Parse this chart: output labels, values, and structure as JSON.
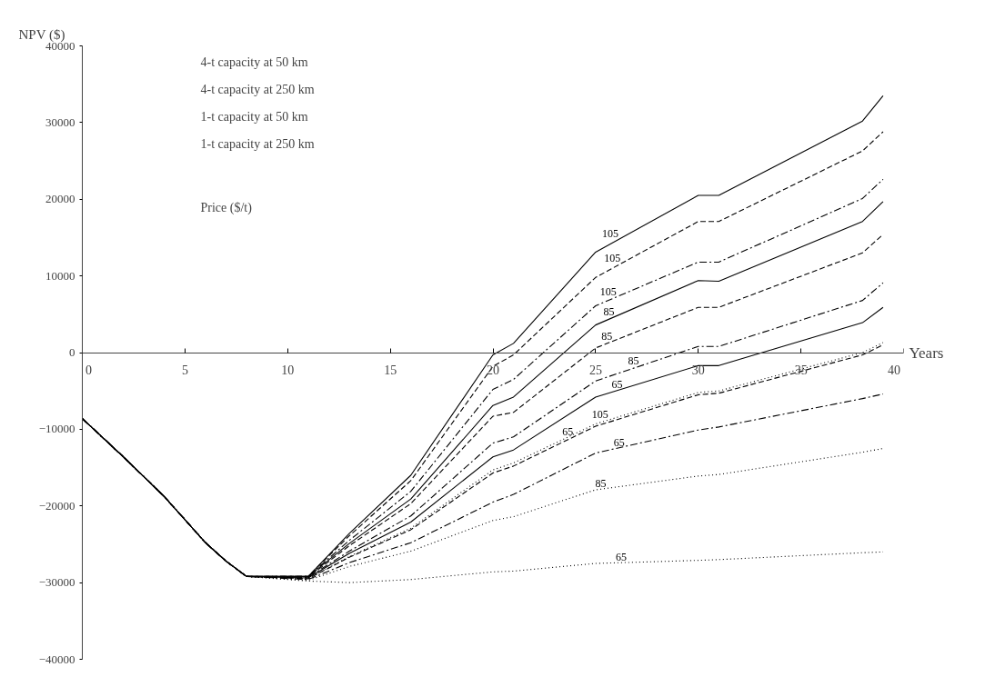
{
  "chart_data": {
    "type": "line",
    "xlabel": "Years",
    "ylabel": "NPV ($)",
    "xlim": [
      0,
      40
    ],
    "ylim": [
      -40000,
      40000
    ],
    "xticks": [
      0,
      5,
      10,
      15,
      20,
      25,
      30,
      35,
      40
    ],
    "yticks": [
      -40000,
      -30000,
      -20000,
      -10000,
      0,
      10000,
      20000,
      30000,
      40000
    ],
    "x": [
      0,
      2,
      4,
      6,
      7,
      8,
      11,
      13,
      16,
      20,
      21,
      25,
      30,
      31,
      38,
      39
    ],
    "series": [
      {
        "color": "#000000",
        "line_style": "solid",
        "values": [
          -8600,
          -13600,
          -18800,
          -24800,
          -27200,
          -29200,
          -29200,
          -23600,
          -16000,
          -300,
          1200,
          13100,
          20500,
          20500,
          30200,
          33500
        ]
      },
      {
        "color": "#000000",
        "line_style": "dashed",
        "values": [
          -8600,
          -13600,
          -18800,
          -24800,
          -27200,
          -29200,
          -29200,
          -23900,
          -16700,
          -1800,
          -300,
          9800,
          17100,
          17100,
          26300,
          28800
        ]
      },
      {
        "color": "#000000",
        "line_style": "dashdot",
        "values": [
          -8600,
          -13600,
          -18800,
          -24800,
          -27200,
          -29200,
          -29200,
          -24500,
          -18100,
          -4800,
          -3500,
          6100,
          11800,
          11800,
          20100,
          22600
        ]
      },
      {
        "color": "#000000",
        "line_style": "solid",
        "values": [
          -8600,
          -13600,
          -18800,
          -24800,
          -27200,
          -29200,
          -29200,
          -24900,
          -19100,
          -6900,
          -5800,
          3600,
          9400,
          9300,
          17100,
          19700
        ]
      },
      {
        "color": "#000000",
        "line_style": "dashed",
        "values": [
          -8600,
          -13600,
          -18800,
          -24800,
          -27200,
          -29200,
          -29300,
          -25200,
          -19700,
          -8300,
          -7800,
          600,
          5900,
          5900,
          13000,
          15400
        ]
      },
      {
        "color": "#000000",
        "line_style": "dashdot",
        "values": [
          -8600,
          -13600,
          -18800,
          -24800,
          -27200,
          -29200,
          -29300,
          -25900,
          -21300,
          -11800,
          -11000,
          -3700,
          800,
          800,
          6800,
          9100
        ]
      },
      {
        "color": "#000000",
        "line_style": "solid",
        "values": [
          -8600,
          -13600,
          -18800,
          -24800,
          -27200,
          -29200,
          -29400,
          -26200,
          -22100,
          -13600,
          -12700,
          -5800,
          -1700,
          -1700,
          3900,
          5900
        ]
      },
      {
        "color": "#000000",
        "line_style": "dotted",
        "values": [
          -8600,
          -13600,
          -18800,
          -24800,
          -27200,
          -29200,
          -29500,
          -26600,
          -22900,
          -15300,
          -14400,
          -9300,
          -5200,
          -5000,
          0,
          1300
        ]
      },
      {
        "color": "#000000",
        "line_style": "dashed",
        "values": [
          -8600,
          -13600,
          -18800,
          -24800,
          -27200,
          -29200,
          -29500,
          -26700,
          -23100,
          -15700,
          -14800,
          -9600,
          -5500,
          -5300,
          -300,
          1000
        ]
      },
      {
        "color": "#000000",
        "line_style": "dashdot",
        "values": [
          -8600,
          -13600,
          -18800,
          -24800,
          -27200,
          -29200,
          -29600,
          -27400,
          -24800,
          -19500,
          -18500,
          -13100,
          -10100,
          -9700,
          -6000,
          -5400
        ]
      },
      {
        "color": "#000000",
        "line_style": "dotted",
        "values": [
          -8600,
          -13600,
          -18800,
          -24800,
          -27200,
          -29200,
          -29700,
          -27900,
          -25900,
          -21900,
          -21400,
          -17900,
          -16100,
          -15900,
          -13000,
          -12500
        ]
      },
      {
        "color": "#000000",
        "line_style": "dotted",
        "values": [
          -8600,
          -13600,
          -18800,
          -24800,
          -27200,
          -29200,
          -29800,
          -30000,
          -29600,
          -28600,
          -28500,
          -27500,
          -27100,
          -27000,
          -26100,
          -26000
        ]
      }
    ],
    "annotations": [
      "4-t capacity at 50 km",
      "4-t capacity at 250 km",
      "1-t capacity at 50 km",
      "1-t capacity at 250 km",
      "Price ($/t)",
      {
        "text": "105",
        "x": 26.2,
        "y": 14900
      },
      {
        "text": "105",
        "x": 26.3,
        "y": 11700
      },
      {
        "text": "105",
        "x": 26.1,
        "y": 7300
      },
      {
        "text": "85",
        "x": 26,
        "y": 4800
      },
      {
        "text": "85",
        "x": 25.9,
        "y": 1600
      },
      {
        "text": "85",
        "x": 27.2,
        "y": -1700
      },
      {
        "text": "65",
        "x": 26.4,
        "y": -4700
      },
      {
        "text": "105",
        "x": 25.7,
        "y": -8700
      },
      {
        "text": "65",
        "x": 24,
        "y": -10900
      },
      {
        "text": "65",
        "x": 26.5,
        "y": -12300
      },
      {
        "text": "85",
        "x": 25.6,
        "y": -17600
      },
      {
        "text": "65",
        "x": 26.6,
        "y": -27300
      }
    ]
  }
}
